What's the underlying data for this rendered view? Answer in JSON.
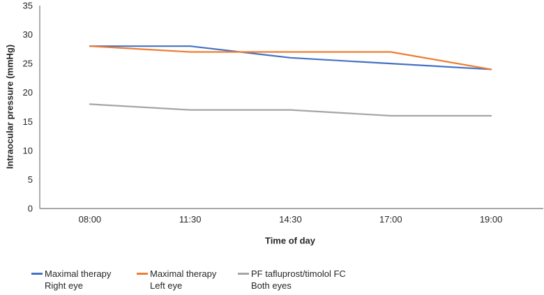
{
  "chart_data": {
    "type": "line",
    "title": "",
    "xlabel": "Time of day",
    "ylabel": "Intraocular pressure (mmHg)",
    "categories": [
      "08:00",
      "11:30",
      "14:30",
      "17:00",
      "19:00"
    ],
    "ylim": [
      0,
      35
    ],
    "ytick_step": 5,
    "grid": false,
    "legend_position": "bottom",
    "axis_color": "#8C8C8C",
    "text_color": "#262626",
    "series": [
      {
        "name": "Maximal therapy Right eye",
        "legend_line1": "Maximal therapy",
        "legend_line2": "Right eye",
        "color": "#4472C4",
        "values": [
          28,
          28,
          26,
          25,
          24
        ]
      },
      {
        "name": "Maximal therapy Left eye",
        "legend_line1": "Maximal therapy",
        "legend_line2": "Left eye",
        "color": "#ED7D31",
        "values": [
          28,
          27,
          27,
          27,
          24
        ]
      },
      {
        "name": "PF tafluprost/timolol FC Both eyes",
        "legend_line1": "PF tafluprost/timolol FC",
        "legend_line2": "Both eyes",
        "color": "#A5A5A5",
        "values": [
          18,
          17,
          17,
          16,
          16
        ]
      }
    ]
  }
}
